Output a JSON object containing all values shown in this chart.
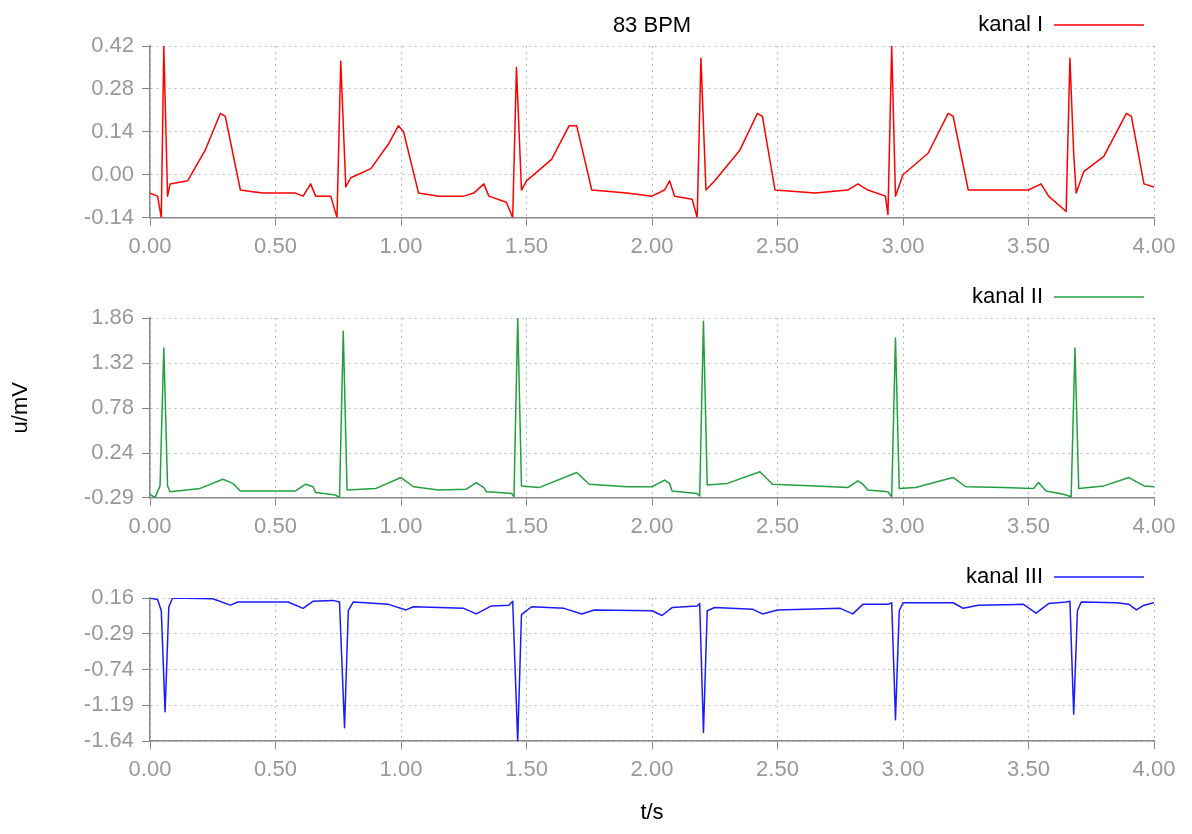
{
  "chart_data": [
    {
      "type": "line",
      "title": "83 BPM",
      "legend": "top right",
      "grid": true,
      "marker": "none",
      "x": [
        0,
        0.03,
        0.045,
        0.055,
        0.07,
        0.08,
        0.15,
        0.22,
        0.28,
        0.3,
        0.36,
        0.45,
        0.58,
        0.61,
        0.64,
        0.66,
        0.72,
        0.745,
        0.76,
        0.78,
        0.8,
        0.88,
        0.95,
        0.99,
        1.01,
        1.07,
        1.15,
        1.25,
        1.29,
        1.33,
        1.35,
        1.42,
        1.445,
        1.46,
        1.48,
        1.5,
        1.6,
        1.67,
        1.7,
        1.76,
        1.9,
        2,
        2.05,
        2.07,
        2.09,
        2.16,
        2.18,
        2.195,
        2.215,
        2.25,
        2.35,
        2.42,
        2.44,
        2.49,
        2.65,
        2.78,
        2.82,
        2.86,
        2.93,
        2.94,
        2.955,
        2.97,
        3,
        3.1,
        3.18,
        3.2,
        3.26,
        3.4,
        3.5,
        3.55,
        3.58,
        3.65,
        3.665,
        3.68,
        3.69,
        3.72,
        3.8,
        3.89,
        3.91,
        3.96,
        4
      ],
      "series": [
        {
          "name": "kanal I",
          "color": "#ff0000",
          "values": [
            -0.06,
            -0.07,
            -0.14,
            0.42,
            -0.07,
            -0.03,
            -0.02,
            0.08,
            0.2,
            0.19,
            -0.05,
            -0.06,
            -0.06,
            -0.07,
            -0.03,
            -0.07,
            -0.07,
            -0.14,
            0.37,
            -0.04,
            -0.01,
            0.02,
            0.1,
            0.16,
            0.14,
            -0.06,
            -0.07,
            -0.07,
            -0.06,
            -0.03,
            -0.07,
            -0.09,
            -0.14,
            0.35,
            -0.05,
            -0.02,
            0.05,
            0.16,
            0.16,
            -0.05,
            -0.06,
            -0.07,
            -0.05,
            -0.02,
            -0.07,
            -0.08,
            -0.14,
            0.38,
            -0.05,
            -0.02,
            0.08,
            0.2,
            0.19,
            -0.05,
            -0.06,
            -0.05,
            -0.03,
            -0.05,
            -0.07,
            -0.13,
            0.42,
            -0.07,
            0,
            0.07,
            0.2,
            0.19,
            -0.05,
            -0.05,
            -0.05,
            -0.03,
            -0.07,
            -0.12,
            0.38,
            0.07,
            -0.06,
            0.01,
            0.06,
            0.2,
            0.19,
            -0.03,
            -0.04
          ]
        }
      ],
      "xlim": [
        0,
        4
      ],
      "xticks": [
        {
          "value": 0,
          "label": "0.00"
        },
        {
          "value": 0.5,
          "label": "0.50"
        },
        {
          "value": 1,
          "label": "1.00"
        },
        {
          "value": 1.5,
          "label": "1.50"
        },
        {
          "value": 2,
          "label": "2.00"
        },
        {
          "value": 2.5,
          "label": "2.50"
        },
        {
          "value": 3,
          "label": "3.00"
        },
        {
          "value": 3.5,
          "label": "3.50"
        },
        {
          "value": 4,
          "label": "4.00"
        }
      ],
      "ylim": [
        -0.14,
        0.42
      ],
      "yticks": [
        -0.14,
        {
          "value": 0,
          "label": "0.00"
        },
        0.14,
        0.28,
        0.42
      ]
    },
    {
      "type": "line",
      "ylabel": "u/mV",
      "legend": "top right",
      "grid": true,
      "marker": "none",
      "x": [
        0,
        0.02,
        0.04,
        0.055,
        0.07,
        0.08,
        0.2,
        0.29,
        0.33,
        0.36,
        0.58,
        0.62,
        0.65,
        0.66,
        0.74,
        0.755,
        0.77,
        0.785,
        0.9,
        1,
        1.05,
        1.15,
        1.26,
        1.3,
        1.33,
        1.34,
        1.44,
        1.45,
        1.465,
        1.48,
        1.55,
        1.7,
        1.75,
        1.9,
        2,
        2.05,
        2.07,
        2.08,
        2.18,
        2.19,
        2.205,
        2.22,
        2.3,
        2.43,
        2.48,
        2.65,
        2.78,
        2.82,
        2.84,
        2.86,
        2.94,
        2.955,
        2.97,
        2.985,
        3.05,
        3.2,
        3.25,
        3.4,
        3.52,
        3.54,
        3.57,
        3.64,
        3.67,
        3.685,
        3.7,
        3.8,
        3.9,
        3.96,
        4
      ],
      "series": [
        {
          "name": "kanal II",
          "color": "#22a040",
          "values": [
            -0.25,
            -0.29,
            -0.15,
            1.5,
            -0.15,
            -0.22,
            -0.18,
            -0.07,
            -0.12,
            -0.21,
            -0.21,
            -0.13,
            -0.16,
            -0.23,
            -0.26,
            -0.29,
            1.7,
            -0.2,
            -0.18,
            -0.05,
            -0.16,
            -0.2,
            -0.19,
            -0.11,
            -0.17,
            -0.22,
            -0.24,
            -0.28,
            1.86,
            -0.15,
            -0.17,
            0.01,
            -0.13,
            -0.16,
            -0.16,
            -0.08,
            -0.12,
            -0.21,
            -0.24,
            -0.27,
            1.82,
            -0.14,
            -0.12,
            0.02,
            -0.13,
            -0.15,
            -0.17,
            -0.09,
            -0.13,
            -0.2,
            -0.22,
            -0.28,
            1.62,
            -0.18,
            -0.17,
            -0.05,
            -0.16,
            -0.17,
            -0.18,
            -0.11,
            -0.21,
            -0.25,
            -0.28,
            1.5,
            -0.18,
            -0.15,
            -0.05,
            -0.15,
            -0.16
          ]
        }
      ],
      "xlim": [
        0,
        4
      ],
      "xticks": [
        {
          "value": 0,
          "label": "0.00"
        },
        {
          "value": 0.5,
          "label": "0.50"
        },
        {
          "value": 1,
          "label": "1.00"
        },
        {
          "value": 1.5,
          "label": "1.50"
        },
        {
          "value": 2,
          "label": "2.00"
        },
        {
          "value": 2.5,
          "label": "2.50"
        },
        {
          "value": 3,
          "label": "3.00"
        },
        {
          "value": 3.5,
          "label": "3.50"
        },
        {
          "value": 4,
          "label": "4.00"
        }
      ],
      "ylim": [
        -0.29,
        1.86
      ],
      "yticks": [
        -0.29,
        0.24,
        0.78,
        1.32,
        1.86
      ]
    },
    {
      "type": "line",
      "xlabel": "t/s",
      "legend": "top right",
      "grid": true,
      "marker": "none",
      "x": [
        0,
        0.03,
        0.045,
        0.06,
        0.075,
        0.09,
        0.25,
        0.32,
        0.35,
        0.55,
        0.61,
        0.65,
        0.73,
        0.755,
        0.775,
        0.79,
        0.81,
        0.95,
        1.02,
        1.05,
        1.25,
        1.3,
        1.36,
        1.43,
        1.445,
        1.465,
        1.48,
        1.52,
        1.65,
        1.72,
        1.77,
        2,
        2.04,
        2.08,
        2.18,
        2.19,
        2.205,
        2.22,
        2.25,
        2.4,
        2.44,
        2.5,
        2.75,
        2.8,
        2.84,
        2.94,
        2.955,
        2.97,
        2.985,
        3,
        3.2,
        3.24,
        3.3,
        3.48,
        3.53,
        3.58,
        3.65,
        3.665,
        3.68,
        3.695,
        3.71,
        3.85,
        3.9,
        3.93,
        3.96,
        4
      ],
      "series": [
        {
          "name": "kanal III",
          "color": "#1a1aff",
          "values": [
            0.16,
            0.14,
            0,
            -1.27,
            0.05,
            0.16,
            0.15,
            0.07,
            0.11,
            0.11,
            0.03,
            0.12,
            0.13,
            0.11,
            -1.47,
            0,
            0.11,
            0.08,
            0.01,
            0.05,
            0.03,
            -0.04,
            0.06,
            0.07,
            0.12,
            -1.64,
            -0.05,
            0.05,
            0.03,
            -0.04,
            0.01,
            0,
            -0.06,
            0.04,
            0.06,
            0.09,
            -1.53,
            0,
            0.04,
            0.02,
            -0.04,
            0.01,
            0.03,
            -0.04,
            0.08,
            0.08,
            0.1,
            -1.37,
            0,
            0.1,
            0.1,
            0.03,
            0.07,
            0.08,
            -0.03,
            0.09,
            0.11,
            0.12,
            -1.3,
            0,
            0.11,
            0.1,
            0.08,
            0.01,
            0.07,
            0.1
          ]
        }
      ],
      "xlim": [
        0,
        4
      ],
      "xticks": [
        {
          "value": 0,
          "label": "0.00"
        },
        {
          "value": 0.5,
          "label": "0.50"
        },
        {
          "value": 1,
          "label": "1.00"
        },
        {
          "value": 1.5,
          "label": "1.50"
        },
        {
          "value": 2,
          "label": "2.00"
        },
        {
          "value": 2.5,
          "label": "2.50"
        },
        {
          "value": 3,
          "label": "3.00"
        },
        {
          "value": 3.5,
          "label": "3.50"
        },
        {
          "value": 4,
          "label": "4.00"
        }
      ],
      "ylim": [
        -1.64,
        0.16
      ],
      "yticks": [
        -1.64,
        -1.19,
        -0.74,
        -0.29,
        0.16
      ]
    }
  ]
}
